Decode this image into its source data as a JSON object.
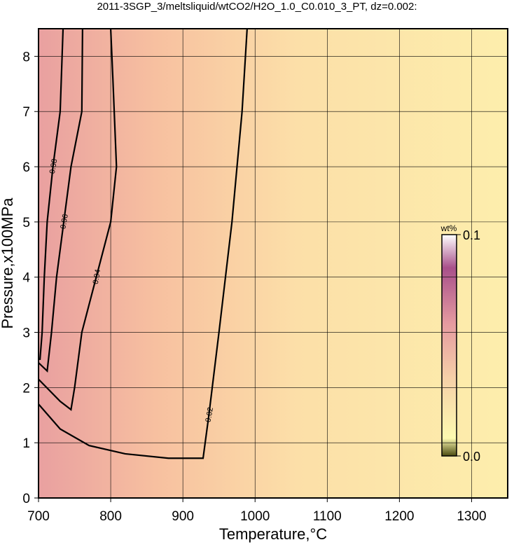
{
  "chart_data": {
    "type": "contour",
    "title": "2011-3SGP_3/meltsliquid/wtCO2/H2O_1.0_C0.010_3_PT, dz=0.002:",
    "x_label": "Temperature,°C",
    "y_label": "Pressure,x100MPa",
    "xlim": [
      700,
      1350
    ],
    "ylim": [
      0,
      8.5
    ],
    "xticks": [
      700,
      800,
      900,
      1000,
      1100,
      1200,
      1300
    ],
    "yticks": [
      0,
      1,
      2,
      3,
      4,
      5,
      6,
      7,
      8
    ],
    "grid": true,
    "colorbar_title": "wt%",
    "colorbar_lim": [
      0,
      0.1
    ],
    "colorbar_ticks": [
      {
        "value": 0,
        "label": "0.0"
      },
      0.1
    ],
    "contours": [
      {
        "level": 0.02,
        "x": [
          989,
          982,
          968,
          950,
          936,
          928,
          880,
          820,
          770,
          730,
          700
        ],
        "y": [
          8.5,
          7,
          5,
          3,
          1.5,
          0.72,
          0.72,
          0.8,
          0.95,
          1.25,
          1.7
        ]
      },
      {
        "level": 0.04,
        "x": [
          800,
          803,
          808,
          800,
          780,
          760,
          750,
          745,
          730,
          700
        ],
        "y": [
          8.5,
          7.6,
          6,
          5,
          4,
          3,
          2,
          1.6,
          1.75,
          2.15
        ]
      },
      {
        "level": 0.06,
        "x": [
          761,
          760,
          745,
          735,
          725,
          718,
          712,
          700
        ],
        "y": [
          8.5,
          7,
          6,
          5,
          4,
          3,
          2.3,
          2.45
        ]
      },
      {
        "level": 0.08,
        "x": [
          734,
          730,
          720,
          712,
          708,
          705,
          702
        ],
        "y": [
          8.5,
          7,
          6,
          5,
          4,
          3,
          2.5
        ]
      }
    ]
  }
}
